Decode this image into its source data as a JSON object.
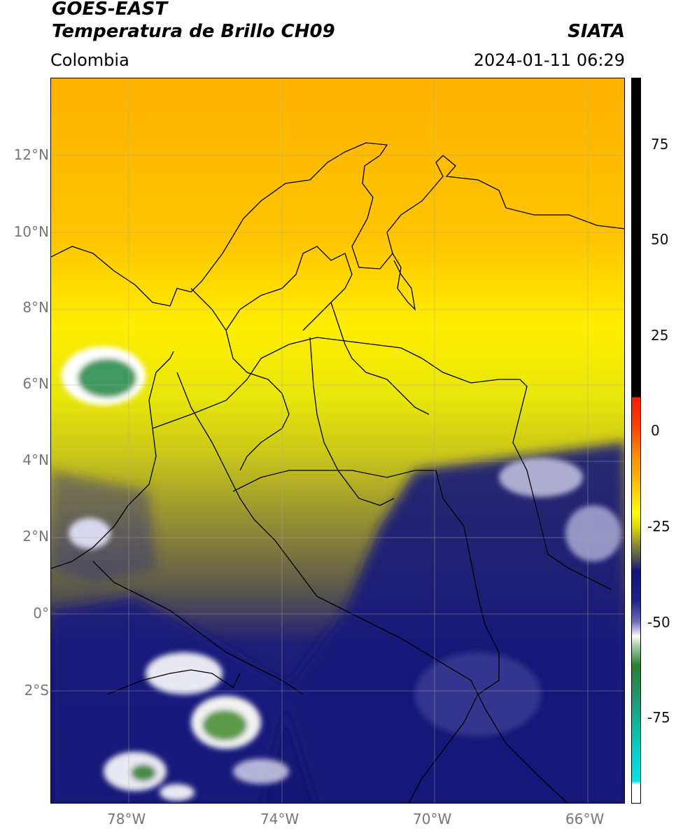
{
  "header": {
    "satellite": "GOES-EAST",
    "product": "Temperatura de Brillo CH09",
    "region": "Colombia",
    "agency": "SIATA",
    "datetime": "2024-01-11 06:29"
  },
  "map": {
    "lat_ticks": [
      "12°N",
      "10°N",
      "8°N",
      "6°N",
      "4°N",
      "2°N",
      "0°",
      "2°S"
    ],
    "lon_ticks": [
      "78°W",
      "74°W",
      "70°W",
      "66°W"
    ],
    "lon_range": [
      -80,
      -65
    ],
    "lat_range": [
      -5,
      14
    ],
    "grid": true
  },
  "colorbar": {
    "labels": [
      "75",
      "50",
      "25",
      "0",
      "-25",
      "-50",
      "-75"
    ],
    "colors": {
      "black": "#000000",
      "red": "#ff1a00",
      "orange": "#ffa500",
      "yellow": "#ffff00",
      "olive": "#8c8c1e",
      "navy": "#14147a",
      "white": "#ffffff",
      "green": "#2e7d32",
      "cyan": "#00e5e5"
    }
  }
}
